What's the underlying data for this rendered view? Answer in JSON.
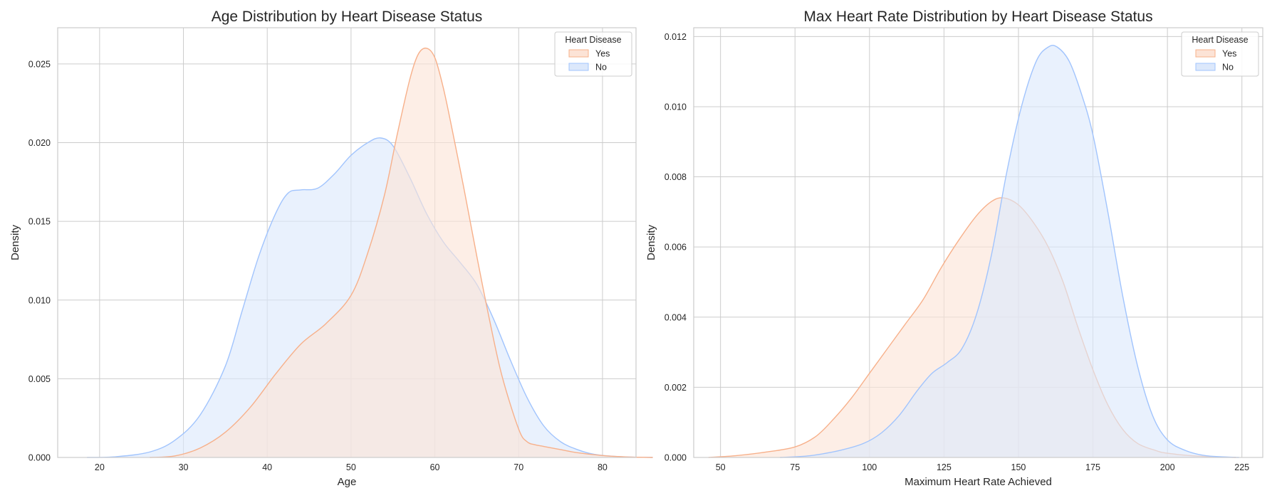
{
  "chart_data": [
    {
      "type": "area",
      "title": "Age Distribution by Heart Disease Status",
      "xlabel": "Age",
      "ylabel": "Density",
      "xlim": [
        15,
        84
      ],
      "ylim": [
        0,
        0.0273
      ],
      "xticks": [
        20,
        30,
        40,
        50,
        60,
        70,
        80
      ],
      "yticks": [
        0.0,
        0.005,
        0.01,
        0.015,
        0.02,
        0.025
      ],
      "ytick_labels": [
        "0.000",
        "0.005",
        "0.010",
        "0.015",
        "0.020",
        "0.025"
      ],
      "grid": true,
      "legend": {
        "title": "Heart Disease",
        "placement": "top-right"
      },
      "series": [
        {
          "name": "No",
          "stroke": "#a1c4fd",
          "fill": "#dce8fb",
          "x": [
            18.5,
            22,
            26,
            29,
            32,
            35,
            37,
            39,
            41,
            42.5,
            44,
            46,
            48,
            50,
            52,
            53.5,
            55,
            57,
            59,
            61,
            63,
            65,
            67,
            69,
            71,
            73,
            75,
            77,
            79,
            82,
            86
          ],
          "y": [
            0.0,
            5e-05,
            0.00035,
            0.0011,
            0.0027,
            0.0058,
            0.0093,
            0.0128,
            0.0155,
            0.0168,
            0.017,
            0.0171,
            0.018,
            0.0192,
            0.02,
            0.0203,
            0.0198,
            0.0178,
            0.0155,
            0.0137,
            0.0124,
            0.011,
            0.0088,
            0.0062,
            0.0038,
            0.002,
            0.001,
            0.0005,
            0.0002,
            5e-05,
            0.0
          ]
        },
        {
          "name": "Yes",
          "stroke": "#f7b08a",
          "fill": "#fce3d6",
          "x": [
            26,
            29,
            32,
            35,
            38,
            41,
            44,
            47,
            50,
            52,
            54,
            55.5,
            57,
            58,
            59,
            60,
            61,
            62,
            63.5,
            65,
            66.5,
            68,
            70,
            71,
            72,
            73,
            75,
            77,
            80,
            83,
            86
          ],
          "y": [
            0.0,
            0.0001,
            0.0006,
            0.0016,
            0.0032,
            0.0053,
            0.0072,
            0.0085,
            0.0103,
            0.013,
            0.0167,
            0.0205,
            0.024,
            0.0256,
            0.026,
            0.0254,
            0.0235,
            0.021,
            0.017,
            0.0128,
            0.0088,
            0.0052,
            0.0018,
            0.001,
            0.0008,
            0.0007,
            0.0005,
            0.0003,
            0.00012,
            3e-05,
            0.0
          ]
        }
      ]
    },
    {
      "type": "area",
      "title": "Max Heart Rate Distribution by Heart Disease Status",
      "xlabel": "Maximum Heart Rate Achieved",
      "ylabel": "Density",
      "xlim": [
        41,
        232
      ],
      "ylim": [
        0,
        0.01225
      ],
      "xticks": [
        50,
        75,
        100,
        125,
        150,
        175,
        200,
        225
      ],
      "yticks": [
        0.0,
        0.002,
        0.004,
        0.006,
        0.008,
        0.01,
        0.012
      ],
      "ytick_labels": [
        "0.000",
        "0.002",
        "0.004",
        "0.006",
        "0.008",
        "0.010",
        "0.012"
      ],
      "grid": true,
      "legend": {
        "title": "Heart Disease",
        "placement": "top-right"
      },
      "series": [
        {
          "name": "Yes",
          "stroke": "#f7b08a",
          "fill": "#fce3d6",
          "x": [
            46,
            55,
            65,
            75,
            82,
            88,
            94,
            100,
            106,
            112,
            118,
            124,
            130,
            136,
            141,
            145,
            150,
            155,
            160,
            165,
            170,
            175,
            180,
            185,
            190,
            196,
            200,
            210,
            223
          ],
          "y": [
            0.0,
            5e-05,
            0.00015,
            0.0003,
            0.0006,
            0.0011,
            0.0017,
            0.0024,
            0.0031,
            0.0038,
            0.0045,
            0.0054,
            0.0062,
            0.0069,
            0.0073,
            0.0074,
            0.0072,
            0.0067,
            0.006,
            0.005,
            0.0037,
            0.0025,
            0.0015,
            0.0008,
            0.0004,
            0.0002,
            0.00012,
            4e-05,
            0.0
          ]
        },
        {
          "name": "No",
          "stroke": "#a1c4fd",
          "fill": "#dce8fb",
          "x": [
            70,
            80,
            90,
            98,
            104,
            110,
            116,
            121,
            126,
            131,
            136,
            141,
            146,
            151,
            156,
            160,
            163,
            167,
            171,
            175,
            180,
            185,
            190,
            195,
            200,
            206,
            213,
            224
          ],
          "y": [
            0.0,
            5e-05,
            0.0002,
            0.0004,
            0.0007,
            0.0012,
            0.0019,
            0.0024,
            0.0027,
            0.0031,
            0.0041,
            0.0058,
            0.0081,
            0.01,
            0.0113,
            0.0117,
            0.0117,
            0.0113,
            0.0104,
            0.0092,
            0.007,
            0.0046,
            0.0026,
            0.0012,
            0.0005,
            0.0002,
            5e-05,
            0.0
          ]
        }
      ]
    }
  ]
}
